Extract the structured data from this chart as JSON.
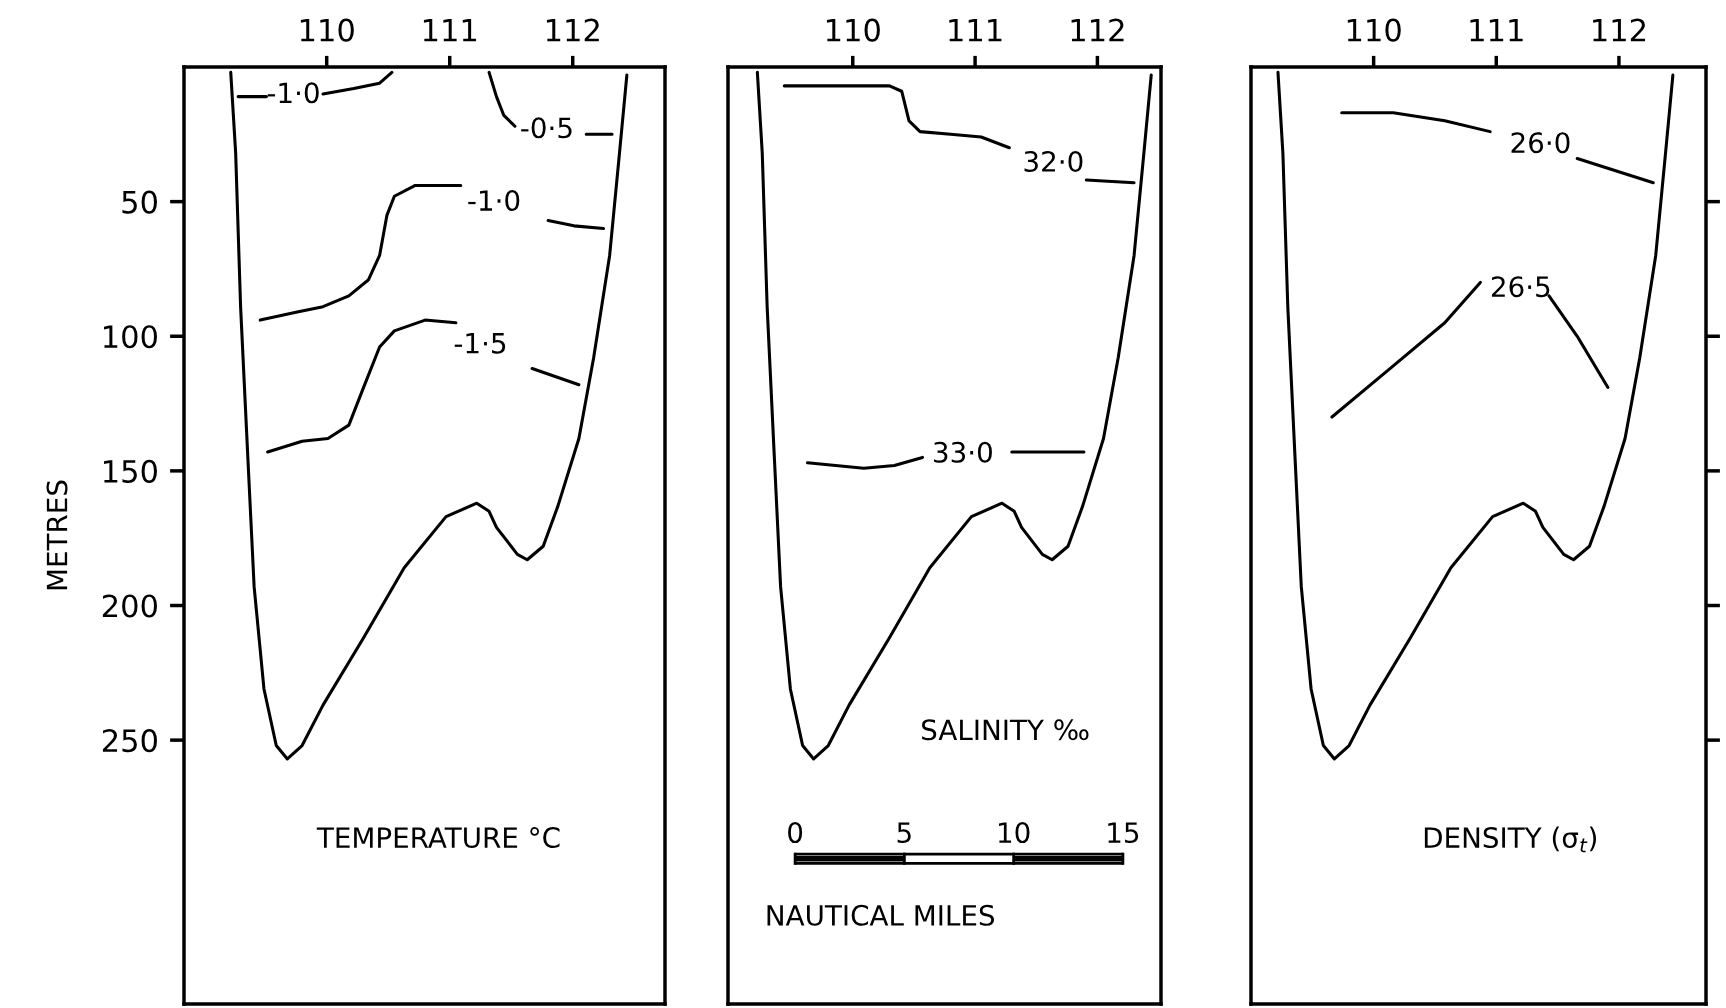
{
  "chart_data": [
    {
      "type": "line",
      "ylabel": "METRES",
      "xlim": [
        108.84,
        112.75
      ],
      "xticks": [
        110,
        111,
        112
      ],
      "ylim": [
        348,
        0
      ],
      "yticks": [
        50,
        100,
        150,
        200,
        250
      ],
      "grid": false,
      "legend": false,
      "marker": "none",
      "line_style": "solid",
      "annotations": [
        "TEMPERATURE °C"
      ],
      "series": [
        {
          "color": "#000000",
          "x": [
            109.22,
            109.26,
            109.3,
            109.36,
            109.41,
            109.49,
            109.59,
            109.68,
            109.8,
            109.97,
            110.3,
            110.63,
            110.97,
            111.22,
            111.32,
            111.38,
            111.55,
            111.63,
            111.76,
            111.88,
            112.05,
            112.17,
            112.3,
            112.38,
            112.44
          ],
          "values": [
            2,
            32,
            89,
            146,
            193,
            231,
            252,
            257,
            252,
            237,
            212,
            186,
            167,
            162,
            165,
            171,
            181,
            183,
            178,
            163,
            138,
            108,
            70,
            32,
            3
          ]
        },
        {
          "name": "-1·0",
          "color": "#000000",
          "x": [
            109.28,
            109.51,
            109.73,
            109.97,
            110.22,
            110.43,
            110.53
          ],
          "values": [
            11,
            11,
            null,
            10,
            8,
            6,
            2
          ]
        },
        {
          "name": "-0·5",
          "color": "#000000",
          "x": [
            111.32,
            111.38,
            111.44,
            111.53,
            111.79,
            112.11,
            112.32
          ],
          "values": [
            2,
            11,
            18,
            22,
            null,
            25,
            25
          ]
        },
        {
          "name": "-1·0",
          "color": "#000000",
          "x": [
            109.46,
            109.76,
            109.97,
            110.18,
            110.34,
            110.43,
            110.49,
            110.55,
            110.72,
            110.88,
            111.09,
            111.36,
            111.8,
            112.01,
            112.25
          ],
          "values": [
            94,
            91,
            89,
            85,
            79,
            70,
            55,
            48,
            44,
            44,
            44,
            null,
            57,
            59,
            60
          ]
        },
        {
          "name": "-1·5",
          "color": "#000000",
          "x": [
            109.52,
            109.8,
            110.01,
            110.18,
            110.3,
            110.43,
            110.55,
            110.8,
            111.05,
            111.25,
            111.67,
            112.05
          ],
          "values": [
            143,
            139,
            138,
            133,
            119,
            104,
            98,
            94,
            95,
            null,
            112,
            118
          ]
        }
      ]
    },
    {
      "type": "line",
      "xlim": [
        108.98,
        112.52
      ],
      "xticks": [
        110,
        111,
        112
      ],
      "ylim": [
        348,
        0
      ],
      "tick_labels": "x",
      "grid": false,
      "legend": false,
      "marker": "none",
      "line_style": "solid",
      "annotations": [
        "SALINITY ‰",
        "0",
        "5",
        "10",
        "15",
        "NAUTICAL MILES"
      ],
      "series": [
        {
          "color": "#000000",
          "x": [
            109.22,
            109.26,
            109.3,
            109.36,
            109.41,
            109.49,
            109.59,
            109.68,
            109.8,
            109.97,
            110.3,
            110.63,
            110.97,
            111.22,
            111.32,
            111.38,
            111.55,
            111.63,
            111.76,
            111.88,
            112.05,
            112.17,
            112.3,
            112.38,
            112.44
          ],
          "values": [
            2,
            32,
            89,
            146,
            193,
            231,
            252,
            257,
            252,
            237,
            212,
            186,
            167,
            162,
            165,
            171,
            181,
            183,
            178,
            163,
            138,
            108,
            70,
            32,
            3
          ]
        },
        {
          "name": "32·0",
          "color": "#000000",
          "x": [
            109.44,
            109.92,
            110.3,
            110.4,
            110.46,
            110.55,
            110.8,
            111.05,
            111.28,
            111.64,
            111.91,
            112.3
          ],
          "values": [
            7,
            7,
            7,
            9,
            20,
            24,
            25,
            26,
            30,
            null,
            42,
            43
          ]
        },
        {
          "name": "33·0",
          "color": "#000000",
          "x": [
            109.63,
            110.09,
            110.34,
            110.57,
            110.9,
            111.3,
            111.89
          ],
          "values": [
            147,
            149,
            148,
            145,
            null,
            143,
            143
          ]
        }
      ]
    },
    {
      "type": "line",
      "xlim": [
        109.0,
        112.71
      ],
      "xticks": [
        110,
        111,
        112
      ],
      "ylim": [
        348,
        0
      ],
      "yticks": [
        50,
        100,
        150,
        200,
        250
      ],
      "tick_labels": "x",
      "grid": false,
      "legend": false,
      "marker": "none",
      "line_style": "solid",
      "annotations": [
        "DENSITY (σ$_{t}$)"
      ],
      "series": [
        {
          "color": "#000000",
          "x": [
            109.22,
            109.26,
            109.3,
            109.36,
            109.41,
            109.49,
            109.59,
            109.68,
            109.8,
            109.97,
            110.3,
            110.63,
            110.97,
            111.22,
            111.32,
            111.38,
            111.55,
            111.63,
            111.76,
            111.88,
            112.05,
            112.17,
            112.3,
            112.38,
            112.44
          ],
          "values": [
            2,
            32,
            89,
            146,
            193,
            231,
            252,
            257,
            252,
            237,
            212,
            186,
            167,
            162,
            165,
            171,
            181,
            183,
            178,
            163,
            138,
            108,
            70,
            32,
            3
          ]
        },
        {
          "name": "26·0",
          "color": "#000000",
          "x": [
            109.74,
            110.16,
            110.58,
            110.95,
            111.36,
            111.66,
            112.28
          ],
          "values": [
            17,
            17,
            20,
            24,
            null,
            34,
            43
          ]
        },
        {
          "name": "26·5",
          "color": "#000000",
          "x": [
            109.66,
            110.16,
            110.58,
            110.87,
            111.2,
            111.43,
            111.66,
            111.91
          ],
          "values": [
            130,
            111,
            95,
            80,
            null,
            85,
            100,
            119
          ]
        }
      ]
    }
  ]
}
